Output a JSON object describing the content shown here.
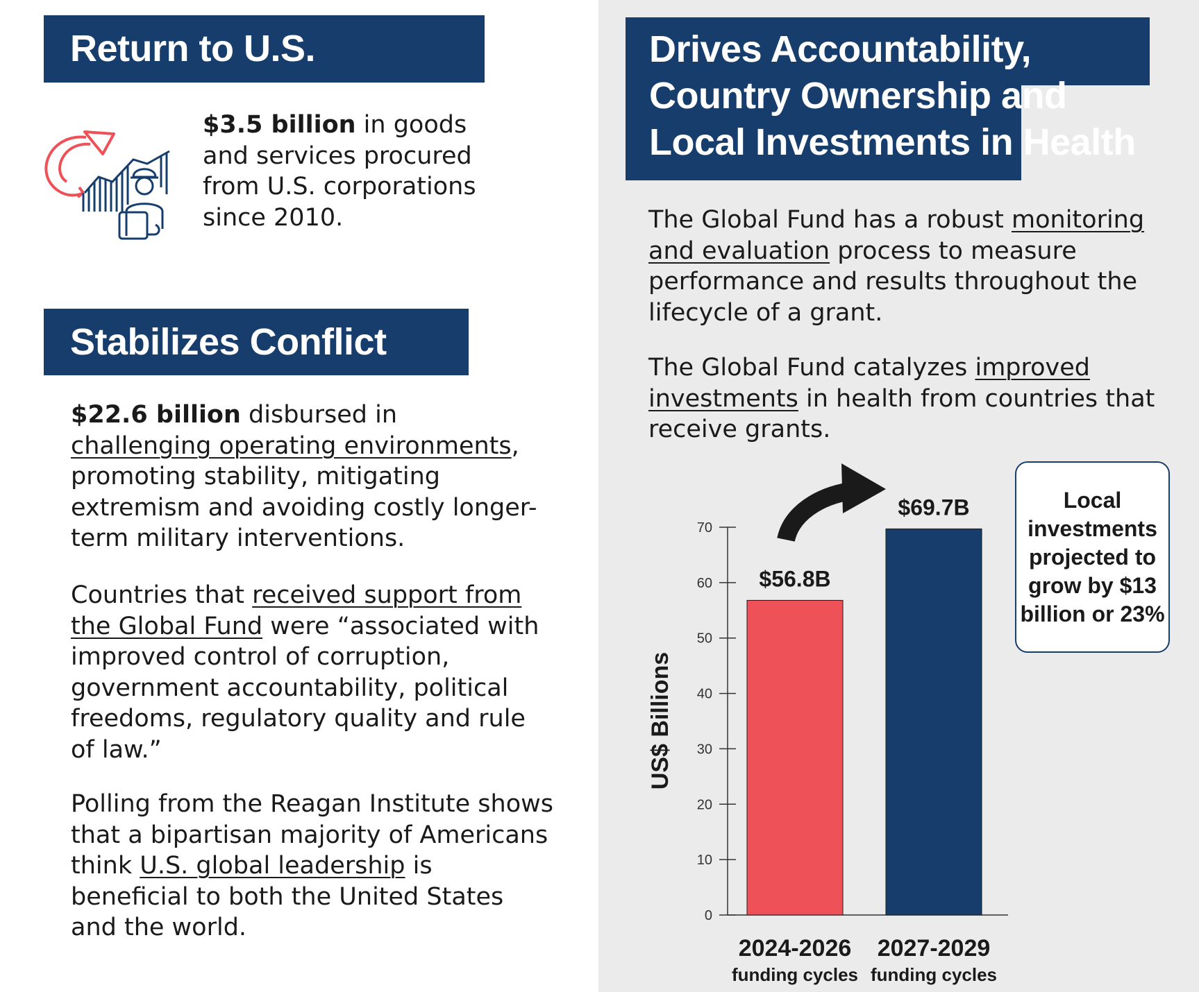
{
  "left": {
    "businesses": {
      "heading": "Return to U.S. Businesses",
      "amount": "$3.5 billion",
      "text": " in goods and services procured from U.S. corporations since 2010."
    },
    "conflict": {
      "heading": "Stabilizes Conflict Zones",
      "p1_amount": "$22.6 billion",
      "p1_a": " disbursed in ",
      "p1_link": "challenging operating environments",
      "p1_b": ", promoting stability, mitigating extremism and avoiding costly longer-term military interventions.",
      "p2_a": "Countries that ",
      "p2_link": "received support from the Global Fund",
      "p2_b": " were “associated with improved control of corruption, government accountability, political freedoms, regulatory quality and rule of law.”",
      "p3_a": "Polling from the Reagan Institute shows that a bipartisan majority of Americans think ",
      "p3_link": "U.S. global leadership",
      "p3_b": " is beneficial to both the United States and the world."
    }
  },
  "right": {
    "heading": "Drives Accountability, Country Ownership and Local Investments in Health",
    "p1_a": "The Global Fund has a robust ",
    "p1_link": "monitoring and evaluation",
    "p1_b": " process to measure performance and results throughout the lifecycle of a grant.",
    "p2_a": "The Global Fund catalyzes ",
    "p2_link": "improved investments",
    "p2_b": " in health from countries that receive grants.",
    "callout": "Local investments projected to grow by $13 billion or 23%"
  },
  "colors": {
    "navy": "#163d6b",
    "red": "#ef5159",
    "arrow": "#1a1a1a"
  },
  "chart_data": {
    "type": "bar",
    "categories": [
      "2024-2026",
      "2027-2029"
    ],
    "category_sublabels": [
      "funding cycles",
      "funding cycles"
    ],
    "values": [
      56.8,
      69.7
    ],
    "data_labels": [
      "$56.8B",
      "$69.7B"
    ],
    "bar_colors": [
      "#ef5159",
      "#163d6b"
    ],
    "ylabel": "US$ Billions",
    "ylim": [
      0,
      70
    ],
    "yticks": [
      0,
      10,
      20,
      30,
      40,
      50,
      60,
      70
    ],
    "grid": false
  }
}
